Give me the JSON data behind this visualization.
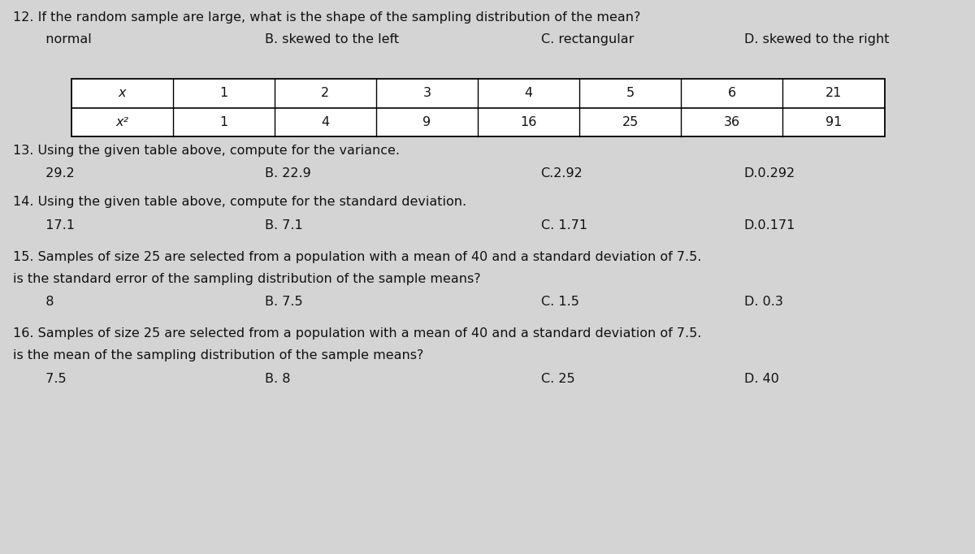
{
  "bg_color": "#d4d4d4",
  "text_color": "#111111",
  "q12": {
    "question": "12. If the random sample are large, what is the shape of the sampling distribution of the mean?",
    "options": [
      "  normal",
      "B. skewed to the left",
      "C. rectangular",
      "D. skewed to the right"
    ]
  },
  "table": {
    "headers": [
      "x",
      "1",
      "2",
      "3",
      "4",
      "5",
      "6",
      "21"
    ],
    "row2_label": "x²",
    "row2_values": [
      "1",
      "4",
      "9",
      "16",
      "25",
      "36",
      "91"
    ]
  },
  "q13": {
    "question": "13. Using the given table above, compute for the variance.",
    "options": [
      "  29.2",
      "B. 22.9",
      "C.2.92",
      "D.0.292"
    ]
  },
  "q14": {
    "question": "14. Using the given table above, compute for the standard deviation.",
    "options": [
      "  17.1",
      "B. 7.1",
      "C. 1.71",
      "D.0.171"
    ]
  },
  "q15": {
    "question": "15. Samples of size 25 are selected from a population with a mean of 40 and a standard deviation of 7.5.",
    "question2": "is the standard error of the sampling distribution of the sample means?",
    "options": [
      "  8",
      "B. 7.5",
      "C. 1.5",
      "D. 0.3"
    ]
  },
  "q16": {
    "question": "16. Samples of size 25 are selected from a population with a mean of 40 and a standard deviation of 7.5.",
    "question2": "is the mean of the sampling distribution of the sample means?",
    "options": [
      "  7.5",
      "B. 8",
      "C. 25",
      "D. 40"
    ]
  }
}
